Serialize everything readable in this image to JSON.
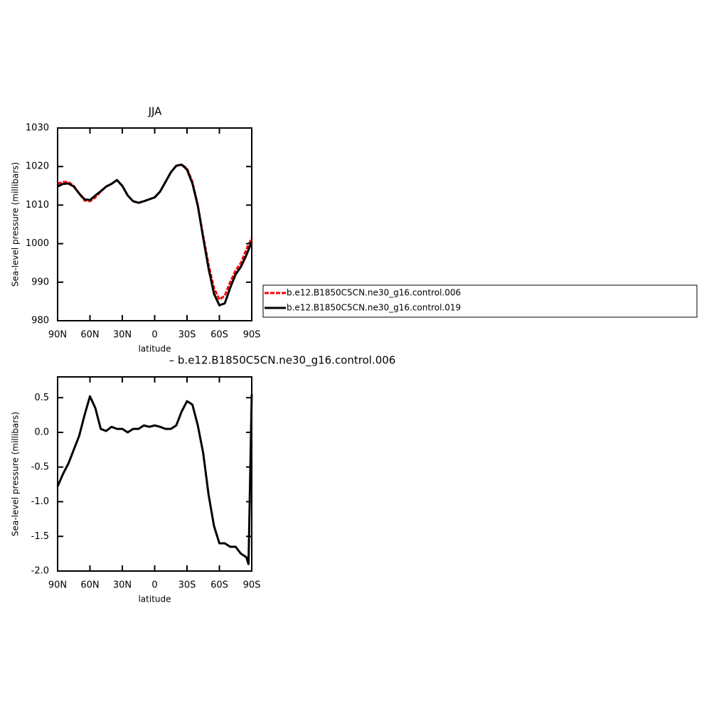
{
  "chart_data": [
    {
      "type": "line",
      "title": "JJA",
      "xlabel": "latitude",
      "ylabel": "Sea-level pressure (millibars)",
      "x": [
        90,
        85,
        80,
        75,
        70,
        65,
        60,
        55,
        50,
        45,
        40,
        35,
        30,
        25,
        20,
        15,
        10,
        5,
        0,
        -5,
        -10,
        -15,
        -20,
        -25,
        -30,
        -35,
        -40,
        -45,
        -50,
        -55,
        -60,
        -65,
        -70,
        -75,
        -80,
        -85,
        -90
      ],
      "series": [
        {
          "name": "b.e12.B1850C5CN.ne30_g16.control.006",
          "color": "#ff0000",
          "dash": "dashed",
          "values": [
            1015.5,
            1016,
            1016,
            1015,
            1013,
            1011.2,
            1011,
            1012,
            1013.5,
            1014.8,
            1015.5,
            1016.5,
            1015,
            1012.5,
            1011,
            1010.6,
            1011,
            1011.5,
            1012,
            1013.5,
            1016,
            1018.5,
            1020.2,
            1020.5,
            1019.5,
            1016,
            1010,
            1002,
            994.5,
            988.5,
            985.5,
            986.5,
            990,
            993,
            995,
            998.5,
            1001.5
          ]
        },
        {
          "name": "b.e12.B1850C5CN.ne30_g16.control.019",
          "color": "#000000",
          "dash": "solid",
          "values": [
            1014.8,
            1015.5,
            1015.6,
            1014.8,
            1013,
            1011.5,
            1011.3,
            1012.5,
            1013.6,
            1014.8,
            1015.5,
            1016.5,
            1015,
            1012.5,
            1011,
            1010.6,
            1011,
            1011.5,
            1012,
            1013.5,
            1016,
            1018.5,
            1020.2,
            1020.5,
            1019.2,
            1015.6,
            1009.8,
            1001.5,
            993.5,
            987,
            984,
            984.5,
            988.5,
            992,
            994,
            997,
            1000.5
          ]
        }
      ],
      "xlim": [
        90,
        -90
      ],
      "xticks": [
        {
          "value": 90,
          "label": "90N"
        },
        {
          "value": 60,
          "label": "60N"
        },
        {
          "value": 30,
          "label": "30N"
        },
        0,
        {
          "value": -30,
          "label": "30S"
        },
        {
          "value": -60,
          "label": "60S"
        },
        {
          "value": -90,
          "label": "90S"
        }
      ],
      "ylim": [
        980,
        1030
      ],
      "yticks": [
        980,
        990,
        1000,
        1010,
        1020,
        1030
      ]
    },
    {
      "type": "line",
      "title": "– b.e12.B1850C5CN.ne30_g16.control.006",
      "xlabel": "latitude",
      "ylabel": "Sea-level pressure (millibars)",
      "x": [
        90,
        85,
        80,
        75,
        70,
        65,
        60,
        55,
        50,
        45,
        40,
        35,
        30,
        25,
        20,
        15,
        10,
        5,
        0,
        -5,
        -10,
        -15,
        -20,
        -25,
        -30,
        -35,
        -40,
        -45,
        -50,
        -55,
        -60,
        -65,
        -70,
        -75,
        -80,
        -85,
        -87,
        -90
      ],
      "color": "#000000",
      "values": [
        -0.78,
        -0.6,
        -0.45,
        -0.25,
        -0.05,
        0.25,
        0.52,
        0.35,
        0.05,
        0.02,
        0.08,
        0.05,
        0.05,
        0.0,
        0.05,
        0.05,
        0.1,
        0.08,
        0.1,
        0.08,
        0.05,
        0.05,
        0.1,
        0.3,
        0.45,
        0.4,
        0.1,
        -0.3,
        -0.9,
        -1.35,
        -1.6,
        -1.6,
        -1.65,
        -1.65,
        -1.75,
        -1.8,
        -1.9,
        0.55
      ],
      "xlim": [
        90,
        -90
      ],
      "xticks": [
        {
          "value": 90,
          "label": "90N"
        },
        {
          "value": 60,
          "label": "60N"
        },
        {
          "value": 30,
          "label": "30N"
        },
        0,
        {
          "value": -30,
          "label": "30S"
        },
        {
          "value": -60,
          "label": "60S"
        },
        {
          "value": -90,
          "label": "90S"
        }
      ],
      "ylim": [
        -2,
        0.8
      ],
      "yticks": [
        {
          "value": -2,
          "label": "-2.0"
        },
        -1.5,
        {
          "value": -1,
          "label": "-1.0"
        },
        -0.5,
        {
          "value": 0,
          "label": "0.0"
        },
        0.5
      ]
    }
  ]
}
